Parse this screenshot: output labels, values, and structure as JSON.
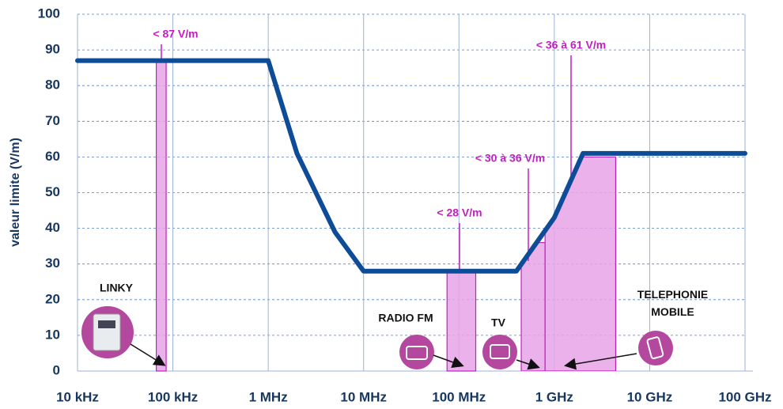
{
  "chart_data": {
    "type": "line",
    "ylabel": "valeur limite (V/m)",
    "xscale": "log",
    "x": [
      10000,
      1000000,
      2000000,
      5000000,
      10000000,
      400000000,
      1000000000,
      2000000000,
      100000000000
    ],
    "series": [
      {
        "name": "valeur limite",
        "color": "#0e4c97",
        "values": [
          87,
          87,
          61,
          39,
          28,
          28,
          43,
          61,
          61
        ]
      }
    ],
    "xlim": [
      10000,
      100000000000
    ],
    "xticks": [
      {
        "value": 10000,
        "label": "10 kHz"
      },
      {
        "value": 100000,
        "label": "100 kHz"
      },
      {
        "value": 1000000,
        "label": "1 MHz"
      },
      {
        "value": 10000000,
        "label": "10 MHz"
      },
      {
        "value": 100000000,
        "label": "100 MHz"
      },
      {
        "value": 1000000000,
        "label": "1 GHz"
      },
      {
        "value": 10000000000,
        "label": "10 GHz"
      },
      {
        "value": 100000000000,
        "label": "100 GHz"
      }
    ],
    "ylim": [
      0,
      100
    ],
    "yticks": [
      0,
      10,
      20,
      30,
      40,
      50,
      60,
      70,
      80,
      90,
      100
    ],
    "grid": true,
    "bands": [
      {
        "label": "LINKY",
        "annotation": "< 87 V/m",
        "x": [
          67000,
          85000
        ],
        "top": 87,
        "color": "#e7a3e7"
      },
      {
        "label": "RADIO FM",
        "annotation": "< 28  V/m",
        "x": [
          75000000,
          150000000
        ],
        "top": 28,
        "color": "#e7a3e7"
      },
      {
        "label": "TV",
        "annotation": "< 30 à 36 V/m",
        "x": [
          450000000,
          800000000
        ],
        "top": 36,
        "color": "#e7a3e7"
      },
      {
        "label": "TELEPHONIE MOBILE",
        "annotation": "< 36 à 61 V/m",
        "x": [
          800000000,
          4400000000
        ],
        "top": 60,
        "color": "#e7a3e7"
      }
    ]
  }
}
